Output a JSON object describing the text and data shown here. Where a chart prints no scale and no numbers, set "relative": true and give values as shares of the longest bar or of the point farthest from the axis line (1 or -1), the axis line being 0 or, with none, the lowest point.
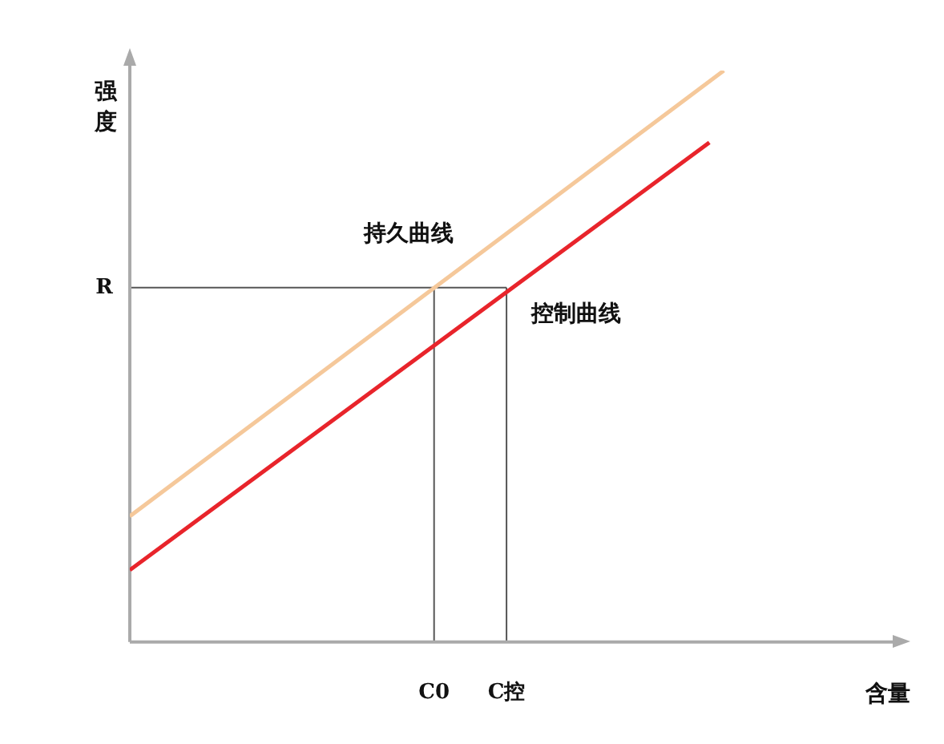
{
  "chart_data": {
    "type": "line",
    "relative": true,
    "xlabel": "含量",
    "ylabel": "强度",
    "categories": [
      null,
      null,
      null,
      null,
      null,
      null,
      null,
      null,
      null,
      null,
      null,
      null,
      null,
      null,
      null,
      null,
      null,
      null,
      null,
      null,
      null,
      "C0",
      null,
      null,
      null,
      null,
      "C控",
      null,
      null,
      null,
      null,
      null,
      null,
      null,
      null,
      null,
      null,
      null,
      null,
      null,
      null,
      null,
      null,
      null,
      null,
      null,
      null,
      null,
      null,
      null,
      null
    ],
    "series": [
      {
        "name": "持久曲线",
        "color": "#f5c89a",
        "values": [
          0.22,
          null,
          null,
          null,
          null,
          null,
          null,
          null,
          null,
          null,
          null,
          null,
          null,
          null,
          null,
          null,
          null,
          null,
          null,
          null,
          null,
          null,
          null,
          null,
          null,
          null,
          null,
          null,
          null,
          null,
          null,
          null,
          null,
          null,
          null,
          null,
          null,
          null,
          null,
          null,
          null,
          1,
          null,
          null,
          null,
          null,
          null,
          null,
          null,
          null,
          null
        ]
      },
      {
        "name": "控制曲线",
        "color": "#e8242b",
        "values": [
          0.126,
          null,
          null,
          null,
          null,
          null,
          null,
          null,
          null,
          null,
          null,
          null,
          null,
          null,
          null,
          null,
          null,
          null,
          null,
          null,
          null,
          null,
          null,
          null,
          null,
          null,
          null,
          null,
          null,
          null,
          null,
          null,
          null,
          null,
          null,
          null,
          null,
          null,
          null,
          null,
          0.874,
          null,
          null,
          null,
          null,
          null,
          null,
          null,
          null,
          null,
          null
        ]
      }
    ],
    "ref_lines": [
      {
        "axis": "y",
        "value": 0.62,
        "label": "R",
        "color": "#555555"
      }
    ],
    "grid": "x",
    "legend": false,
    "marker": "none",
    "line_style": "solid"
  }
}
